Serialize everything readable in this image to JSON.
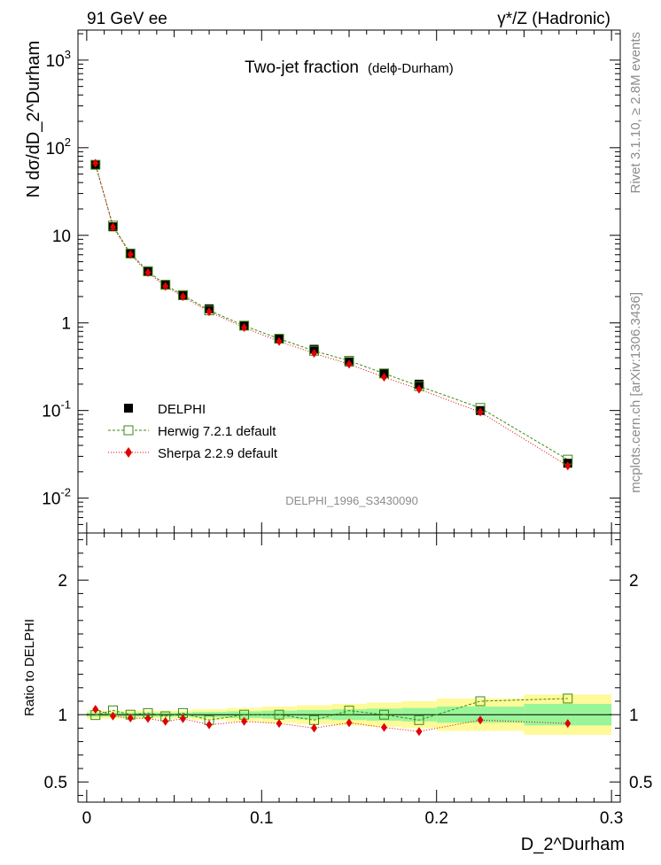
{
  "header": {
    "left": "91 GeV ee",
    "right": "γ*/Z (Hadronic)"
  },
  "side": {
    "right_top": "Rivet 3.1.10, ≥ 2.8M events",
    "right_bottom": "mcplots.cern.ch [arXiv:1306.3436]"
  },
  "chart_data": [
    {
      "type": "scatter",
      "title": "Two-jet fraction",
      "title_suffix": "(delϕ-Durham)",
      "analysis_id": "DELPHI_1996_S3430090",
      "ylabel": "N dσ/dD_2^Durham",
      "yscale": "log",
      "ylim": [
        0.004,
        2200
      ],
      "xlim": [
        -0.005,
        0.305
      ],
      "ytick_labels": [
        "10^-2",
        "10^-1",
        "1",
        "10",
        "10^2",
        "10^3"
      ],
      "legend_position": "lower-left",
      "x": [
        0.005,
        0.015,
        0.025,
        0.035,
        0.045,
        0.055,
        0.07,
        0.09,
        0.11,
        0.13,
        0.15,
        0.17,
        0.19,
        0.225,
        0.275
      ],
      "series": [
        {
          "name": "DELPHI",
          "marker": "filled-square",
          "color": "#000000",
          "values": [
            64,
            12.5,
            6.2,
            3.85,
            2.75,
            2.05,
            1.45,
            0.93,
            0.66,
            0.5,
            0.36,
            0.265,
            0.2,
            0.1,
            0.025
          ]
        },
        {
          "name": "Herwig 7.2.1 default",
          "marker": "open-square",
          "color": "#3a8a10",
          "line": "dashed",
          "values": [
            63.8,
            12.9,
            6.2,
            3.9,
            2.72,
            2.08,
            1.39,
            0.93,
            0.66,
            0.48,
            0.37,
            0.265,
            0.19,
            0.107,
            0.0275
          ]
        },
        {
          "name": "Sherpa 2.2.9 default",
          "marker": "filled-diamond",
          "color": "#e00000",
          "line": "dotted",
          "values": [
            66.5,
            12.4,
            6.05,
            3.75,
            2.62,
            2.0,
            1.34,
            0.885,
            0.615,
            0.45,
            0.338,
            0.24,
            0.175,
            0.096,
            0.0233
          ]
        }
      ]
    },
    {
      "type": "scatter",
      "ylabel": "Ratio to DELPHI",
      "xlabel": "D_2^Durham",
      "ylim": [
        0.35,
        2.35
      ],
      "xlim": [
        -0.005,
        0.305
      ],
      "ytick_labels": [
        "0.5",
        "1",
        "2"
      ],
      "xtick_labels": [
        "0",
        "0.1",
        "0.2",
        "0.3"
      ],
      "bands": {
        "edges": [
          0,
          0.01,
          0.02,
          0.03,
          0.04,
          0.05,
          0.06,
          0.08,
          0.1,
          0.12,
          0.14,
          0.16,
          0.18,
          0.2,
          0.25,
          0.3
        ],
        "yellow_halfwidth": [
          0.03,
          0.03,
          0.03,
          0.03,
          0.03,
          0.03,
          0.04,
          0.05,
          0.06,
          0.07,
          0.08,
          0.09,
          0.1,
          0.12,
          0.15
        ],
        "green_halfwidth": [
          0.015,
          0.015,
          0.015,
          0.015,
          0.015,
          0.015,
          0.02,
          0.025,
          0.03,
          0.035,
          0.04,
          0.045,
          0.05,
          0.06,
          0.08
        ]
      },
      "x": [
        0.005,
        0.015,
        0.025,
        0.035,
        0.045,
        0.055,
        0.07,
        0.09,
        0.11,
        0.13,
        0.15,
        0.17,
        0.19,
        0.225,
        0.275
      ],
      "series": [
        {
          "name": "Herwig 7.2.1 default",
          "color": "#3a8a10",
          "values": [
            0.997,
            1.032,
            1.0,
            1.012,
            0.988,
            1.012,
            0.96,
            1.0,
            1.0,
            0.96,
            1.03,
            1.0,
            0.96,
            1.1,
            1.12
          ]
        },
        {
          "name": "Sherpa 2.2.9 default",
          "color": "#e00000",
          "values": [
            1.04,
            0.99,
            0.975,
            0.972,
            0.95,
            0.97,
            0.925,
            0.95,
            0.935,
            0.9,
            0.94,
            0.905,
            0.875,
            0.96,
            0.935
          ]
        }
      ]
    }
  ]
}
